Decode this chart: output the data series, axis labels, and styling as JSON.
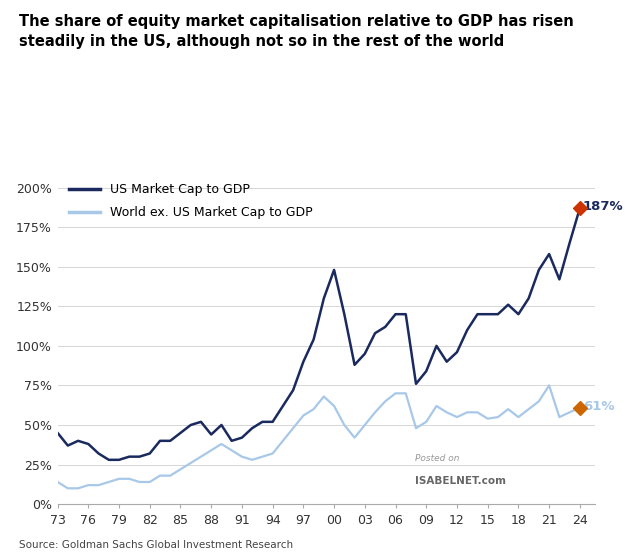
{
  "title": "The share of equity market capitalisation relative to GDP has risen\nsteadily in the US, although not so in the rest of the world",
  "source": "Source: Goldman Sachs Global Investment Research",
  "us_label": "US Market Cap to GDP",
  "world_label": "World ex. US Market Cap to GDP",
  "us_color": "#1a2a5e",
  "world_color": "#a8c8e8",
  "us_final_value": 187,
  "world_final_value": 61,
  "us_marker_color": "#cc3300",
  "world_marker_color": "#cc6600",
  "ylim": [
    0,
    210
  ],
  "yticks": [
    0,
    25,
    50,
    75,
    100,
    125,
    150,
    175,
    200
  ],
  "background_color": "#ffffff",
  "x_start_year": 1973,
  "x_end_year": 2024,
  "xtick_labels": [
    "73",
    "76",
    "79",
    "82",
    "85",
    "88",
    "91",
    "94",
    "97",
    "00",
    "03",
    "06",
    "09",
    "12",
    "15",
    "18",
    "21",
    "24"
  ],
  "xtick_years": [
    1973,
    1976,
    1979,
    1982,
    1985,
    1988,
    1991,
    1994,
    1997,
    2000,
    2003,
    2006,
    2009,
    2012,
    2015,
    2018,
    2021,
    2024
  ],
  "us_data_years": [
    1973,
    1974,
    1975,
    1976,
    1977,
    1978,
    1979,
    1980,
    1981,
    1982,
    1983,
    1984,
    1985,
    1986,
    1987,
    1988,
    1989,
    1990,
    1991,
    1992,
    1993,
    1994,
    1995,
    1996,
    1997,
    1998,
    1999,
    2000,
    2001,
    2002,
    2003,
    2004,
    2005,
    2006,
    2007,
    2008,
    2009,
    2010,
    2011,
    2012,
    2013,
    2014,
    2015,
    2016,
    2017,
    2018,
    2019,
    2020,
    2021,
    2022,
    2023,
    2024
  ],
  "us_data_vals": [
    45,
    37,
    40,
    38,
    32,
    28,
    28,
    30,
    30,
    32,
    40,
    40,
    45,
    50,
    52,
    44,
    50,
    40,
    42,
    48,
    52,
    52,
    62,
    72,
    90,
    104,
    130,
    148,
    120,
    88,
    95,
    108,
    112,
    120,
    120,
    76,
    84,
    100,
    90,
    96,
    110,
    120,
    120,
    120,
    126,
    120,
    130,
    148,
    158,
    142,
    165,
    187
  ],
  "world_data_years": [
    1973,
    1974,
    1975,
    1976,
    1977,
    1978,
    1979,
    1980,
    1981,
    1982,
    1983,
    1984,
    1985,
    1986,
    1987,
    1988,
    1989,
    1990,
    1991,
    1992,
    1993,
    1994,
    1995,
    1996,
    1997,
    1998,
    1999,
    2000,
    2001,
    2002,
    2003,
    2004,
    2005,
    2006,
    2007,
    2008,
    2009,
    2010,
    2011,
    2012,
    2013,
    2014,
    2015,
    2016,
    2017,
    2018,
    2019,
    2020,
    2021,
    2022,
    2023,
    2024
  ],
  "world_data_vals": [
    14,
    10,
    10,
    12,
    12,
    14,
    16,
    16,
    14,
    14,
    18,
    18,
    22,
    26,
    30,
    34,
    38,
    34,
    30,
    28,
    30,
    32,
    40,
    48,
    56,
    60,
    68,
    62,
    50,
    42,
    50,
    58,
    65,
    70,
    70,
    48,
    52,
    62,
    58,
    55,
    58,
    58,
    54,
    55,
    60,
    55,
    60,
    65,
    75,
    55,
    58,
    61
  ]
}
